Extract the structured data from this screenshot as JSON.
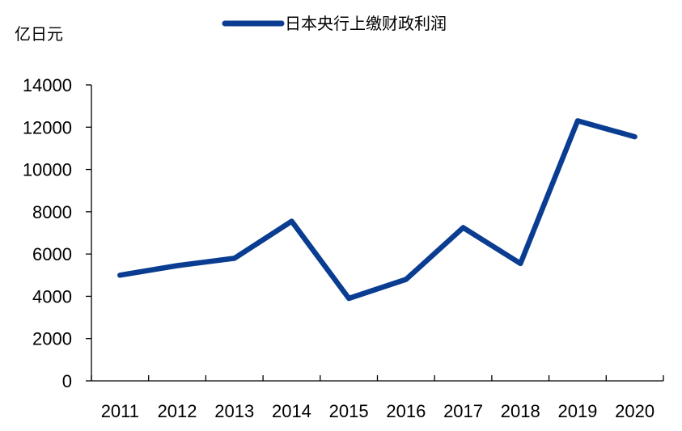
{
  "chart_data": {
    "type": "line",
    "ylabel": "亿日元",
    "categories": [
      "2011",
      "2012",
      "2013",
      "2014",
      "2015",
      "2016",
      "2017",
      "2018",
      "2019",
      "2020"
    ],
    "series": [
      {
        "name": "日本央行上缴财政利润",
        "values": [
          5000,
          5450,
          5800,
          7550,
          3900,
          4800,
          7250,
          5550,
          12300,
          11550
        ],
        "color": "#0a3d91"
      }
    ],
    "ylim": [
      0,
      14000
    ],
    "yticks": [
      0,
      2000,
      4000,
      6000,
      8000,
      10000,
      12000,
      14000
    ],
    "grid": false,
    "legend": "top-center"
  }
}
